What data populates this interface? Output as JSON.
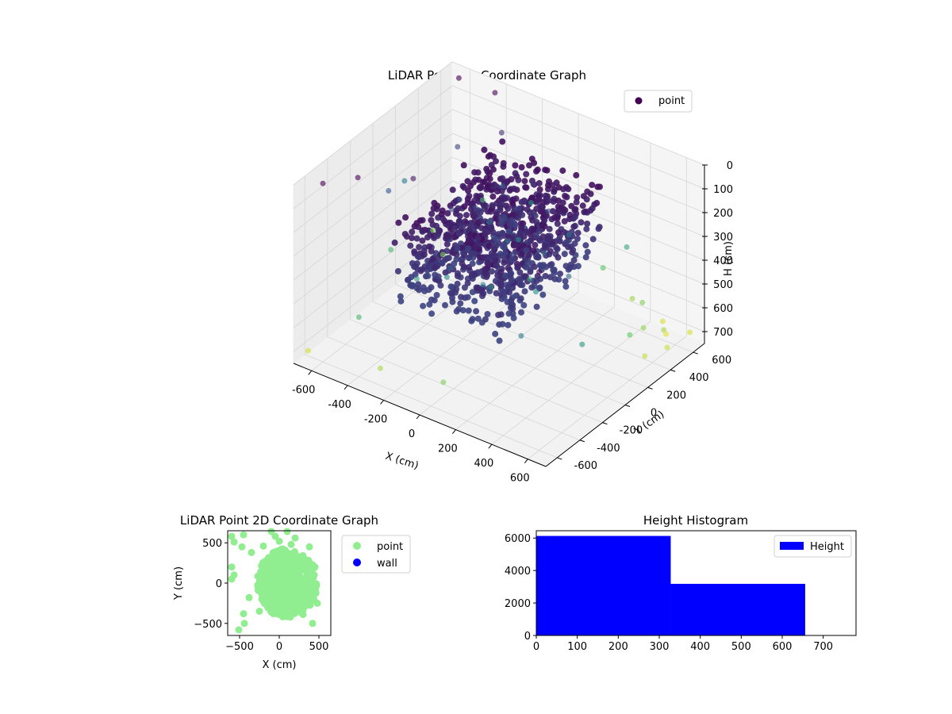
{
  "chart_data": [
    {
      "type": "scatter",
      "projection": "3d",
      "title": "LiDAR Point 3D Coordinate Graph",
      "xlabel": "X (cm)",
      "ylabel": "Y (cm)",
      "zlabel": "H (cm)",
      "xlim": [
        -700,
        700
      ],
      "ylim": [
        -700,
        700
      ],
      "zlim": [
        0,
        750
      ],
      "z_inverted": true,
      "x_ticks": [
        "-600",
        "-400",
        "-200",
        "0",
        "200",
        "400",
        "600"
      ],
      "y_ticks": [
        "-600",
        "-400",
        "-200",
        "0",
        "200",
        "400",
        "600"
      ],
      "z_ticks": [
        "0",
        "100",
        "200",
        "300",
        "400",
        "500",
        "600",
        "700"
      ],
      "grid": true,
      "colormap": "viridis",
      "legend": {
        "placement": "top-right",
        "entries": [
          {
            "label": "point",
            "color": "#440154"
          }
        ]
      },
      "series": [
        {
          "name": "point",
          "cluster": {
            "x_range": [
              -300,
              300
            ],
            "y_range": [
              -450,
              450
            ],
            "h_range": [
              100,
              450
            ],
            "approx_count": 9000
          },
          "sample_points": [
            [
              -100,
              -50,
              150
            ],
            [
              50,
              100,
              160
            ],
            [
              150,
              200,
              180
            ],
            [
              -200,
              -100,
              170
            ],
            [
              0,
              300,
              150
            ],
            [
              200,
              -200,
              200
            ],
            [
              -150,
              150,
              300
            ],
            [
              100,
              -300,
              320
            ],
            [
              250,
              0,
              250
            ],
            [
              -250,
              50,
              200
            ],
            [
              -100,
              -300,
              350
            ],
            [
              50,
              -150,
              400
            ],
            [
              -50,
              250,
              380
            ],
            [
              200,
              300,
              300
            ],
            [
              -280,
              -280,
              420
            ],
            [
              120,
              80,
              430
            ],
            [
              -30,
              -380,
              260
            ],
            [
              280,
              -120,
              360
            ],
            [
              -180,
              320,
              220
            ],
            [
              30,
              30,
              280
            ],
            [
              -600,
              -600,
              0
            ],
            [
              -500,
              -450,
              0
            ],
            [
              -400,
              600,
              0
            ],
            [
              -600,
              600,
              0
            ],
            [
              600,
              -600,
              0
            ],
            [
              -300,
              500,
              100
            ],
            [
              -350,
              -200,
              50
            ],
            [
              400,
              -500,
              200
            ],
            [
              500,
              -600,
              300
            ],
            [
              450,
              -100,
              250
            ],
            [
              -650,
              200,
              300
            ],
            [
              -550,
              -100,
              200
            ],
            [
              -450,
              350,
              150
            ],
            [
              -600,
              0,
              500
            ],
            [
              -500,
              300,
              600
            ],
            [
              650,
              650,
              700
            ],
            [
              600,
              500,
              650
            ],
            [
              550,
              400,
              620
            ],
            [
              500,
              650,
              700
            ],
            [
              620,
              300,
              680
            ],
            [
              450,
              550,
              600
            ],
            [
              350,
              620,
              640
            ],
            [
              600,
              200,
              560
            ],
            [
              550,
              600,
              720
            ],
            [
              650,
              450,
              690
            ],
            [
              -650,
              -650,
              700
            ],
            [
              -250,
              -650,
              650
            ],
            [
              -500,
              650,
              500
            ],
            [
              100,
              -650,
              600
            ],
            [
              -650,
              450,
              600
            ],
            [
              300,
              650,
              450
            ],
            [
              650,
              -300,
              400
            ],
            [
              -400,
              -600,
              500
            ],
            [
              200,
              600,
              550
            ],
            [
              -200,
              600,
              400
            ]
          ]
        }
      ]
    },
    {
      "type": "scatter",
      "title": "LiDAR Point 2D Coordinate Graph",
      "xlabel": "X (cm)",
      "ylabel": "Y (cm)",
      "xlim": [
        -650,
        650
      ],
      "ylim": [
        -650,
        650
      ],
      "x_ticks": [
        "−500",
        "0",
        "500"
      ],
      "y_ticks": [
        "−500",
        "0",
        "500"
      ],
      "legend": {
        "placement": "right",
        "entries": [
          {
            "label": "point",
            "color": "#90ee90"
          },
          {
            "label": "wall",
            "color": "#0000ff"
          }
        ]
      },
      "series": [
        {
          "name": "point",
          "color": "#90ee90",
          "cluster": {
            "x_range": [
              -300,
              500
            ],
            "y_range": [
              -450,
              450
            ]
          },
          "sample_points": [
            [
              -600,
              580
            ],
            [
              -570,
              510
            ],
            [
              -600,
              200
            ],
            [
              -570,
              100
            ],
            [
              -600,
              50
            ],
            [
              -450,
              600
            ],
            [
              -470,
              450
            ],
            [
              -450,
              -380
            ],
            [
              -440,
              -500
            ],
            [
              -510,
              -580
            ],
            [
              -100,
              640
            ],
            [
              100,
              640
            ],
            [
              -50,
              580
            ],
            [
              200,
              560
            ],
            [
              0,
              520
            ],
            [
              420,
              -500
            ],
            [
              300,
              -390
            ],
            [
              380,
              450
            ],
            [
              -350,
              380
            ],
            [
              -380,
              -180
            ],
            [
              -250,
              -350
            ],
            [
              450,
              200
            ],
            [
              480,
              -250
            ],
            [
              150,
              480
            ],
            [
              -200,
              460
            ]
          ]
        },
        {
          "name": "wall",
          "color": "#0000ff",
          "sample_points": []
        }
      ]
    },
    {
      "type": "bar",
      "subtype": "histogram",
      "title": "Height Histogram",
      "xlabel": "",
      "ylabel": "",
      "xlim": [
        0,
        780
      ],
      "ylim": [
        0,
        6450
      ],
      "x_ticks": [
        "0",
        "100",
        "200",
        "300",
        "400",
        "500",
        "600",
        "700"
      ],
      "y_ticks": [
        "0",
        "2000",
        "4000",
        "6000"
      ],
      "legend": {
        "placement": "top-right",
        "entries": [
          {
            "label": "Height",
            "color": "#0000ff"
          }
        ]
      },
      "series": [
        {
          "name": "Height",
          "color": "#0000ff",
          "bins": [
            {
              "x0": 0,
              "x1": 328,
              "count": 6130
            },
            {
              "x0": 328,
              "x1": 656,
              "count": 3180
            }
          ]
        }
      ]
    }
  ]
}
